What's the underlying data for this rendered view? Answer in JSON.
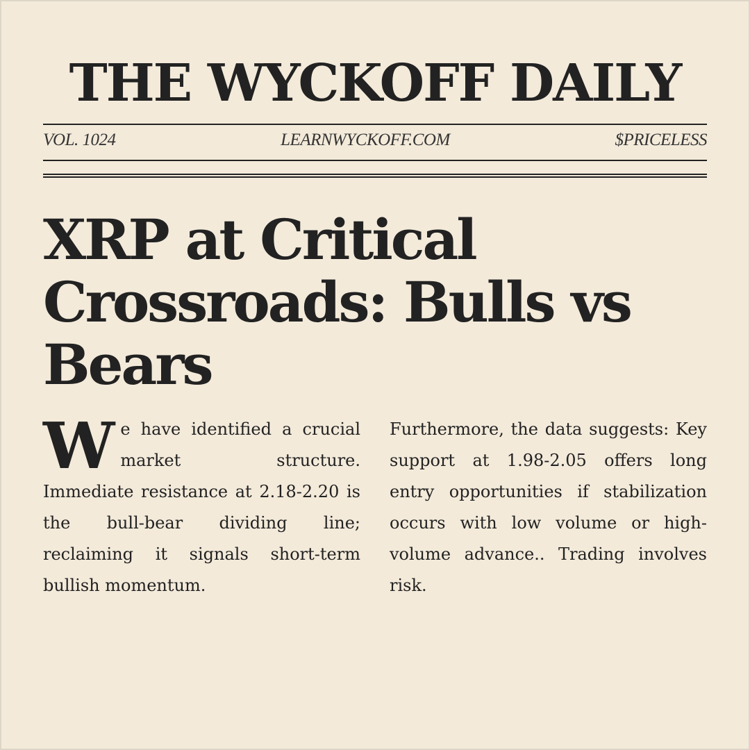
{
  "masthead": {
    "title": "THE WYCKOFF DAILY",
    "volume": "VOL. 1024",
    "site": "LEARNWYCKOFF.COM",
    "price": "$PRICELESS"
  },
  "article": {
    "headline": "XRP at Critical Crossroads: Bulls vs Bears",
    "dropcap": "W",
    "column1": "e have identified a crucial market structure. Immediate resistance at 2.18-2.20 is the bull-bear dividing line; reclaiming it signals short-term bullish momentum.",
    "column2": "Furthermore, the data suggests: Key support at 1.98-2.05 offers long entry opportunities if stabilization occurs with low volume or high-volume advance.. Trading involves risk."
  }
}
